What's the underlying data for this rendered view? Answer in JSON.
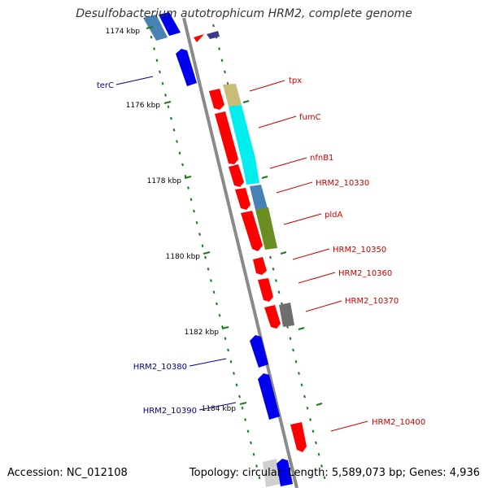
{
  "title": "Desulfobacterium autotrophicum HRM2, complete genome",
  "accession_text": "Accession: NC_012108",
  "summary_text": "Topology: circular; Length: 5,589,073 bp; Genes: 4,936",
  "colors": {
    "backbone": "#8a8a8a",
    "tick": "#1a7a1a",
    "forward_label": "#cc0000",
    "reverse_label": "#00008b",
    "forward_gene": "#ff0000",
    "reverse_gene": "#0000ee"
  },
  "scale": {
    "tick_labels": [
      "1174 kbp",
      "1176 kbp",
      "1178 kbp",
      "1180 kbp",
      "1182 kbp",
      "1184 kbp"
    ]
  },
  "genes": {
    "forward": [
      {
        "label": "tpx",
        "color": "#ff0000"
      },
      {
        "label": "fumC",
        "color": "#ff0000"
      },
      {
        "label": "nfnB1",
        "color": "#ff0000"
      },
      {
        "label": "HRM2_10330",
        "color": "#ff0000"
      },
      {
        "label": "pldA",
        "color": "#ff0000"
      },
      {
        "label": "HRM2_10350",
        "color": "#ff0000"
      },
      {
        "label": "HRM2_10360",
        "color": "#ff0000"
      },
      {
        "label": "HRM2_10370",
        "color": "#ff0000"
      },
      {
        "label": "HRM2_10400",
        "color": "#ff0000"
      }
    ],
    "reverse": [
      {
        "label": "terC",
        "color": "#0000ee"
      },
      {
        "label": "HRM2_10380",
        "color": "#0000ee"
      },
      {
        "label": "HRM2_10390",
        "color": "#0000ee"
      }
    ]
  },
  "cog_colors": [
    "#c8bd78",
    "#00eeee",
    "#00eeee",
    "#4682b4",
    "#6b8e23",
    "#6e6e6e"
  ]
}
